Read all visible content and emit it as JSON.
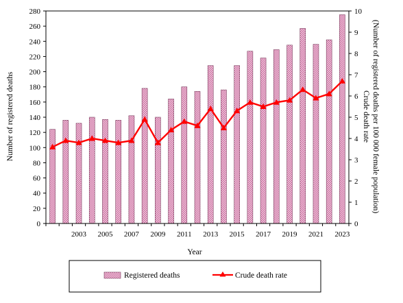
{
  "chart_data": {
    "type": "bar",
    "x": [
      2001,
      2002,
      2003,
      2004,
      2005,
      2006,
      2007,
      2008,
      2009,
      2010,
      2011,
      2012,
      2013,
      2014,
      2015,
      2016,
      2017,
      2018,
      2019,
      2020,
      2021,
      2022,
      2023
    ],
    "x_tick_labels": [
      "2003",
      "2005",
      "2007",
      "2009",
      "2011",
      "2013",
      "2015",
      "2017",
      "2019",
      "2021",
      "2023"
    ],
    "xlabel": "Year",
    "ylabel": "Number of registered deaths",
    "y2label": "Crude death rate\n(Number of registered  deaths per 100 000 female population)",
    "ylim": [
      0,
      280
    ],
    "y_ticks": [
      0,
      20,
      40,
      60,
      80,
      100,
      120,
      140,
      160,
      180,
      200,
      220,
      240,
      260,
      280
    ],
    "y2lim": [
      0,
      10
    ],
    "y2_ticks": [
      0,
      1,
      2,
      3,
      4,
      5,
      6,
      7,
      8,
      9,
      10
    ],
    "series": [
      {
        "name": "Registered deaths",
        "type": "bar",
        "axis": "left",
        "color": "#c8649a",
        "values": [
          124,
          136,
          132,
          140,
          137,
          136,
          142,
          178,
          140,
          164,
          180,
          174,
          208,
          176,
          208,
          227,
          218,
          229,
          235,
          257,
          236,
          242,
          275
        ]
      },
      {
        "name": "Crude death rate",
        "type": "line",
        "axis": "right",
        "color": "#ff0000",
        "values": [
          3.6,
          3.9,
          3.8,
          4.0,
          3.9,
          3.8,
          3.9,
          4.9,
          3.8,
          4.4,
          4.8,
          4.6,
          5.4,
          4.5,
          5.3,
          5.7,
          5.5,
          5.7,
          5.8,
          6.3,
          5.9,
          6.1,
          6.7
        ]
      }
    ],
    "grid": false,
    "legend_position": "bottom"
  }
}
